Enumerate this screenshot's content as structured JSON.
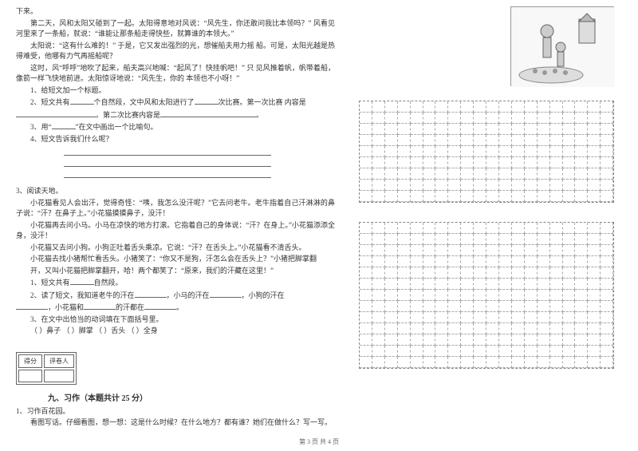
{
  "left": {
    "p1": "下来。",
    "p2": "第二天，风和太阳又碰到了一起。太阳得意地对风说：“风先生，你还敢问我比本领吗？” 风看见河里来了一条船，就说：“谁能让那条船走得快些，就算谁的本领大。”",
    "p3": "太阳说：“这有什么难的！” 于是，它又发出强烈的光，想催船夫用力摇    船。可是，太阳光越是热得难受，他哪有力气再摇船呢？",
    "p4": "这时，风“呼呼”地吹了起来，船夫高兴地喊：“起风了！快挂帆吧！” 只  见风推着帆，帆带着船，像箭一样飞快地前进。太阳惊讶地说：“风先生，你的  本领也不小呀！”",
    "q1": "1、给短文加一个标题。",
    "q2a": "2、短文共有",
    "q2b": "个自然段，文中风和太阳进行了",
    "q2c": "次比赛。第一次比赛    内容是",
    "q2d": "。第二次比赛内容是",
    "q3": "3、用“",
    "q3b": "”在文中画出一个比喻句。",
    "q4": "4、短文告诉我们什么呢？",
    "reading_title": "3、阅读天地。",
    "r1": "小花猫看见人会出汗，觉得奇怪：“咦，我怎么没汗呢？”它去问老牛。老牛指着自己汗淋淋的鼻子说：“汗？在鼻子上。”小花猫摸摸鼻子，没汗！",
    "r2": "小花猫再去问小马。小马在凉快的地方打滚。它指着自己的身体说：“汗？在身上。”小花猫添添全身，没汗！",
    "r3": "小花猫又去问小狗。小狗正吐着舌头乘凉。它说：“汗？在舌头上。”小花猫看不清舌头。",
    "r4": "小花猫去找小猪帮忙看舌头。小猪笑了：“你又不是狗，汗怎么会在舌头上？”小猪把脚掌翻",
    "r5": "开，又叫小花猫把脚掌翻开，哈！两个都笑了：“原来，我们的汗藏在这里！”",
    "rq1a": "1、短文共有",
    "rq1b": "自然段。",
    "rq2a": "2、读了短文，我知道老牛的汗在",
    "rq2b": "，小马的汗在",
    "rq2c": "，小狗的汗在",
    "rq2d": "，小花猫和",
    "rq2e": "的汗都在",
    "rq3": "3、在文中出恰当的动词填在下面括号里。",
    "rq3_opts": "（    ）鼻子    （    ）脚掌    （    ）舌头    （    ）全身",
    "score_label1": "得分",
    "score_label2": "评卷人",
    "section9": "九、习作（本题共计 25 分）",
    "w1": "1、习作百花园。",
    "w2": "看图写话。仔细看图，想一想：这是什么时候？在什么地方？都有谁？她们在做什么？写一写。"
  },
  "footer": "第 3 页  共 4 页",
  "grid": {
    "rows1": 9,
    "rows2": 13,
    "cols": 20
  }
}
